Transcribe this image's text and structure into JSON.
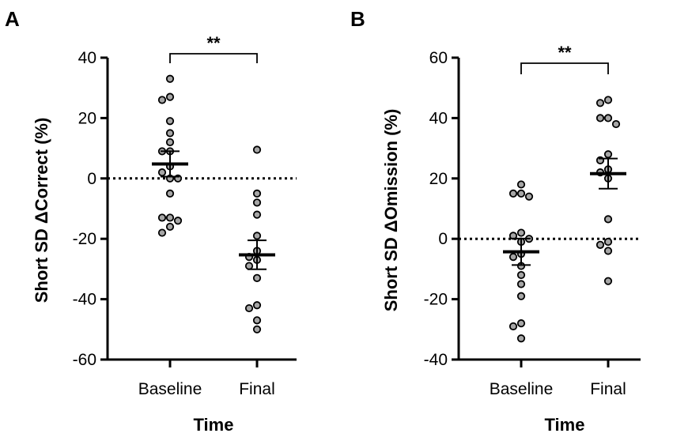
{
  "colors": {
    "point_fill": "#a6a6a6",
    "stroke": "#000000",
    "background": "#ffffff"
  },
  "chart_data": [
    {
      "type": "scatter",
      "panel_label": "A",
      "xlabel": "Time",
      "ylabel": "Short SD ΔCorrect (%)",
      "categories": [
        "Baseline",
        "Final"
      ],
      "ylim": [
        -60,
        40
      ],
      "yticks": [
        "40",
        "20",
        "0",
        "-20",
        "-40",
        "-60"
      ],
      "reference_line_y": 0,
      "significance": {
        "label": "**",
        "between": [
          "Baseline",
          "Final"
        ]
      },
      "series": [
        {
          "name": "Baseline",
          "mean": 4.8,
          "sem": 4.2,
          "values": [
            33,
            27,
            26,
            19,
            15,
            12,
            9,
            9,
            4,
            2,
            0,
            0,
            -5,
            -13,
            -14,
            -13,
            -16,
            -18
          ]
        },
        {
          "name": "Final",
          "mean": -25.3,
          "sem": 4.8,
          "values": [
            9.5,
            -5,
            -8,
            -12,
            -19,
            -24,
            -26,
            -27,
            -29,
            -33,
            -42,
            -43,
            -47,
            -50
          ]
        }
      ]
    },
    {
      "type": "scatter",
      "panel_label": "B",
      "xlabel": "Time",
      "ylabel": "Short SD ΔOmission (%)",
      "categories": [
        "Baseline",
        "Final"
      ],
      "ylim": [
        -40,
        60
      ],
      "yticks": [
        "60",
        "40",
        "20",
        "0",
        "-20",
        "-40"
      ],
      "reference_line_y": 0,
      "significance": {
        "label": "**",
        "between": [
          "Baseline",
          "Final"
        ]
      },
      "series": [
        {
          "name": "Baseline",
          "mean": -4.3,
          "sem": 4.4,
          "values": [
            18,
            15,
            15,
            14,
            2,
            1,
            0,
            -1,
            -5,
            -6,
            -9,
            -12,
            -15,
            -19,
            -28,
            -29,
            -33
          ]
        },
        {
          "name": "Final",
          "mean": 21.6,
          "sem": 5.0,
          "values": [
            46,
            45,
            40,
            40,
            38,
            28,
            26,
            23,
            22,
            20,
            6.5,
            -1,
            -2,
            -4,
            -14
          ]
        }
      ]
    }
  ]
}
